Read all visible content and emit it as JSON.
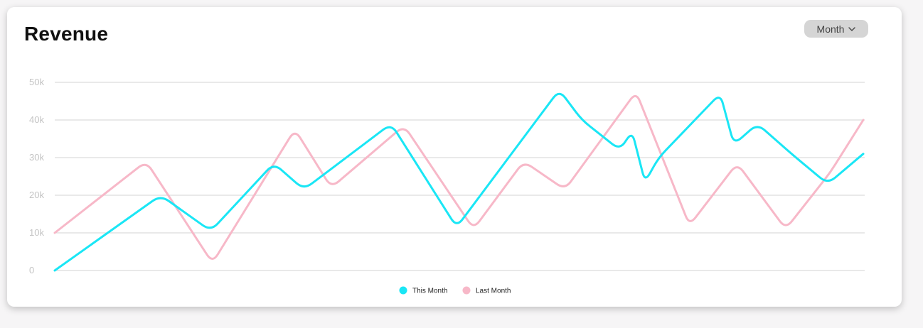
{
  "header": {
    "title": "Revenue",
    "period_select": {
      "selected": "Month",
      "icon": "chevron-down-icon"
    }
  },
  "colors": {
    "this_month": "#1ae6f5",
    "last_month": "#f7b8c8",
    "grid": "#d3d3d3",
    "tick": "#c4c4c4"
  },
  "chart_data": {
    "type": "line",
    "title": "Revenue",
    "xlabel": "",
    "ylabel": "",
    "ylim": [
      0,
      50000
    ],
    "yticks": [
      {
        "value": 0,
        "label": "0"
      },
      {
        "value": 10000,
        "label": "10k"
      },
      {
        "value": 20000,
        "label": "20k"
      },
      {
        "value": 30000,
        "label": "30k"
      },
      {
        "value": 40000,
        "label": "40k"
      },
      {
        "value": 50000,
        "label": "50k"
      }
    ],
    "grid": true,
    "legend_position": "bottom-center",
    "series": [
      {
        "name": "This Month",
        "color": "#1ae6f5",
        "x": [
          0,
          1.31,
          1.93,
          2.71,
          3.08,
          4.16,
          4.97,
          6.24,
          6.52,
          6.99,
          7.14,
          7.3,
          7.47,
          8.23,
          8.4,
          8.69,
          9.14,
          9.56,
          10.0
        ],
        "values": [
          0,
          20000,
          10500,
          28500,
          21500,
          39000,
          11500,
          48000,
          40000,
          32000,
          37000,
          23500,
          30000,
          47000,
          33500,
          39000,
          30500,
          23000,
          31000
        ]
      },
      {
        "name": "Last Month",
        "color": "#f7b8c8",
        "x": [
          0,
          1.13,
          1.95,
          2.97,
          3.42,
          4.32,
          5.18,
          5.8,
          6.31,
          7.19,
          7.85,
          8.44,
          9.04,
          9.59,
          10.0
        ],
        "values": [
          10000,
          29000,
          2000,
          37500,
          22000,
          38500,
          11000,
          29000,
          21500,
          47500,
          12000,
          28500,
          11000,
          26000,
          40000
        ]
      }
    ]
  }
}
